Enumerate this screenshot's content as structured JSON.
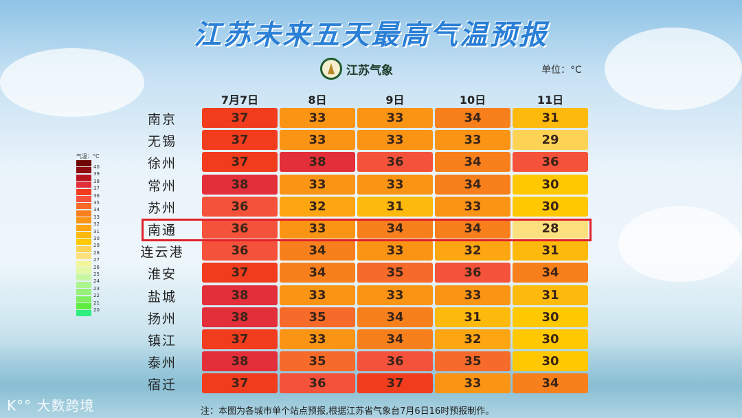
{
  "title": "江苏未来五天最高气温预报",
  "logo_text": "江苏气象",
  "unit": "单位：°C",
  "columns": [
    "7月7日",
    "8日",
    "9日",
    "10日",
    "11日"
  ],
  "rows": [
    {
      "city": "南京",
      "temps": [
        37,
        33,
        33,
        34,
        31
      ]
    },
    {
      "city": "无锡",
      "temps": [
        37,
        33,
        33,
        33,
        29
      ]
    },
    {
      "city": "徐州",
      "temps": [
        37,
        38,
        36,
        34,
        36
      ]
    },
    {
      "city": "常州",
      "temps": [
        38,
        33,
        33,
        34,
        30
      ]
    },
    {
      "city": "苏州",
      "temps": [
        36,
        32,
        31,
        33,
        30
      ]
    },
    {
      "city": "南通",
      "temps": [
        36,
        33,
        34,
        34,
        28
      ]
    },
    {
      "city": "连云港",
      "temps": [
        36,
        34,
        33,
        32,
        31
      ]
    },
    {
      "city": "淮安",
      "temps": [
        37,
        34,
        35,
        36,
        34
      ]
    },
    {
      "city": "盐城",
      "temps": [
        38,
        33,
        33,
        33,
        31
      ]
    },
    {
      "city": "扬州",
      "temps": [
        38,
        35,
        34,
        31,
        30
      ]
    },
    {
      "city": "镇江",
      "temps": [
        37,
        33,
        34,
        32,
        30
      ]
    },
    {
      "city": "泰州",
      "temps": [
        38,
        35,
        36,
        35,
        30
      ]
    },
    {
      "city": "宿迁",
      "temps": [
        37,
        36,
        37,
        33,
        34
      ]
    }
  ],
  "highlighted_city": "南通",
  "highlight_color": "#e0202a",
  "legend": {
    "title": "气温：°C",
    "labels": [
      40,
      39,
      38,
      37,
      36,
      35,
      34,
      33,
      32,
      31,
      30,
      29,
      28,
      27,
      26,
      25,
      24,
      23,
      22,
      21,
      20
    ],
    "colors": {
      "41": "#6e0404",
      "40": "#8e0c10",
      "39": "#b8141e",
      "38": "#e22f3a",
      "37": "#f23c1e",
      "36": "#f5523b",
      "35": "#f66a2a",
      "34": "#f7801c",
      "33": "#fa9414",
      "32": "#fca612",
      "31": "#fdba0c",
      "30": "#ffc800",
      "29": "#fdd356",
      "28": "#fde07e",
      "27": "#f3f59a",
      "26": "#e2f8a2",
      "25": "#c6f6a0",
      "24": "#acf48e",
      "23": "#98f07a",
      "22": "#7eee5e",
      "21": "#5eee3e",
      "20": "#2eee80"
    }
  },
  "note": "注：本图为各城市单个站点预报,根据江苏省气象台7月6日16时预报制作。",
  "watermark": "大数跨境"
}
